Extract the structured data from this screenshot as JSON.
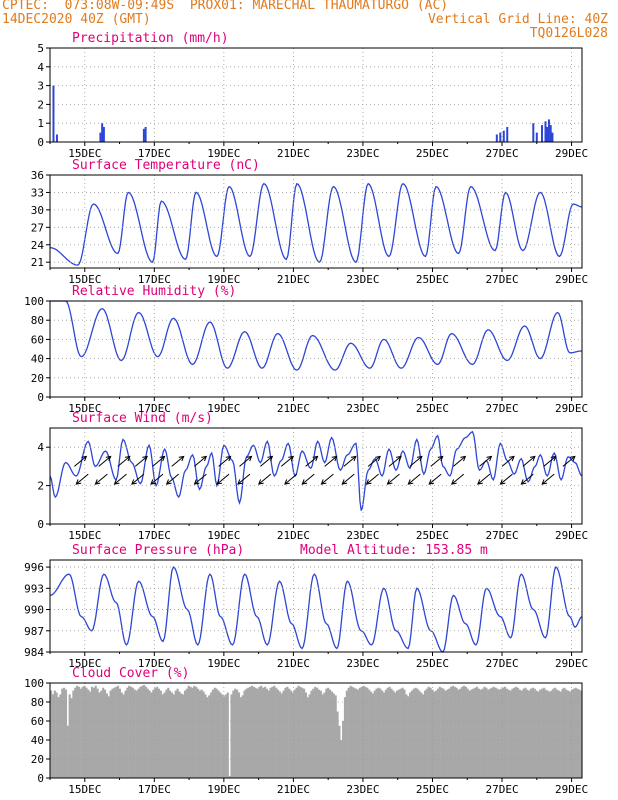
{
  "header": {
    "line1_left": "CPTEC:  073:08W-09:49S  PROX01: MARECHAL THAUMATURGO (AC)",
    "line2_left": "14DEC2020 40Z (GMT)",
    "line2_right": "Vertical Grid Line: 40Z",
    "line3_right": "TQ0126L028"
  },
  "x_tick_labels": [
    "15DEC",
    "17DEC",
    "19DEC",
    "21DEC",
    "23DEC",
    "25DEC",
    "27DEC",
    "29DEC"
  ],
  "colors": {
    "line": "#2e46d6",
    "title": "#e0007a",
    "header": "#e07b1f",
    "cloud": "#a8a8a8"
  },
  "chart_data": [
    {
      "type": "bar",
      "title": "Precipitation (mm/h)",
      "ylim": [
        0,
        5
      ],
      "yticks": [
        0,
        1,
        2,
        3,
        4,
        5
      ],
      "x": [
        0.1,
        0.2,
        1.45,
        1.5,
        1.55,
        2.7,
        2.75,
        12.85,
        12.95,
        13.05,
        13.15,
        13.9,
        14.0,
        14.15,
        14.25,
        14.3,
        14.35,
        14.4,
        14.45
      ],
      "values": [
        3.0,
        0.4,
        0.5,
        1.0,
        0.8,
        0.7,
        0.8,
        0.4,
        0.5,
        0.6,
        0.8,
        1.0,
        0.5,
        0.9,
        1.1,
        0.8,
        1.2,
        0.9,
        0.5
      ]
    },
    {
      "type": "line",
      "title": "Surface Temperature (nC)",
      "ylim": [
        20,
        36
      ],
      "yticks": [
        21,
        24,
        27,
        30,
        33,
        36
      ],
      "peaks": [
        [
          0.0,
          23.5
        ],
        [
          0.8,
          20.5
        ],
        [
          1.25,
          31
        ],
        [
          1.95,
          22.5
        ],
        [
          2.25,
          33
        ],
        [
          2.95,
          21
        ],
        [
          3.2,
          31.5
        ],
        [
          3.9,
          21.5
        ],
        [
          4.2,
          33
        ],
        [
          4.8,
          22
        ],
        [
          5.15,
          34
        ],
        [
          5.75,
          22
        ],
        [
          6.15,
          34.5
        ],
        [
          6.8,
          21.5
        ],
        [
          7.1,
          34.5
        ],
        [
          7.75,
          21
        ],
        [
          8.15,
          34
        ],
        [
          8.8,
          21
        ],
        [
          9.15,
          34.5
        ],
        [
          9.75,
          22
        ],
        [
          10.15,
          34.5
        ],
        [
          10.8,
          22
        ],
        [
          11.1,
          34
        ],
        [
          11.75,
          22.5
        ],
        [
          12.1,
          34
        ],
        [
          12.8,
          23
        ],
        [
          13.1,
          33
        ],
        [
          13.6,
          23
        ],
        [
          14.1,
          33
        ],
        [
          14.65,
          22
        ],
        [
          15.05,
          31
        ],
        [
          15.3,
          30.5
        ]
      ]
    },
    {
      "type": "line",
      "title": "Relative Humidity (%)",
      "ylim": [
        0,
        100
      ],
      "yticks": [
        0,
        20,
        40,
        60,
        80,
        100
      ],
      "peaks": [
        [
          0.0,
          100
        ],
        [
          0.45,
          100
        ],
        [
          0.9,
          42
        ],
        [
          1.5,
          92
        ],
        [
          2.05,
          38
        ],
        [
          2.55,
          88
        ],
        [
          3.1,
          42
        ],
        [
          3.55,
          82
        ],
        [
          4.1,
          34
        ],
        [
          4.6,
          78
        ],
        [
          5.1,
          30
        ],
        [
          5.6,
          68
        ],
        [
          6.1,
          30
        ],
        [
          6.55,
          66
        ],
        [
          7.1,
          28
        ],
        [
          7.55,
          64
        ],
        [
          8.2,
          28
        ],
        [
          8.65,
          56
        ],
        [
          9.2,
          30
        ],
        [
          9.6,
          60
        ],
        [
          10.1,
          30
        ],
        [
          10.6,
          62
        ],
        [
          11.15,
          34
        ],
        [
          11.55,
          66
        ],
        [
          12.15,
          34
        ],
        [
          12.6,
          70
        ],
        [
          13.15,
          38
        ],
        [
          13.65,
          74
        ],
        [
          14.1,
          40
        ],
        [
          14.6,
          88
        ],
        [
          14.95,
          46
        ],
        [
          15.3,
          48
        ]
      ]
    },
    {
      "type": "line",
      "title": "Surface Wind (m/s)",
      "ylim": [
        0,
        5
      ],
      "yticks": [
        0,
        2,
        4
      ],
      "peaks": [
        [
          0.0,
          2.5
        ],
        [
          0.15,
          1.4
        ],
        [
          0.45,
          3.2
        ],
        [
          0.75,
          2.5
        ],
        [
          1.1,
          4.3
        ],
        [
          1.3,
          3.0
        ],
        [
          1.6,
          3.8
        ],
        [
          1.9,
          2.3
        ],
        [
          2.1,
          4.4
        ],
        [
          2.35,
          3.2
        ],
        [
          2.6,
          2.1
        ],
        [
          2.85,
          4.1
        ],
        [
          3.05,
          2.0
        ],
        [
          3.3,
          3.9
        ],
        [
          3.5,
          2.4
        ],
        [
          3.7,
          1.4
        ],
        [
          3.9,
          2.8
        ],
        [
          4.1,
          3.6
        ],
        [
          4.3,
          1.8
        ],
        [
          4.5,
          3.0
        ],
        [
          4.65,
          3.7
        ],
        [
          4.8,
          2.0
        ],
        [
          5.0,
          4.1
        ],
        [
          5.25,
          3.3
        ],
        [
          5.45,
          1.1
        ],
        [
          5.65,
          3.5
        ],
        [
          5.85,
          4.1
        ],
        [
          6.05,
          3.2
        ],
        [
          6.25,
          4.3
        ],
        [
          6.45,
          2.5
        ],
        [
          6.65,
          3.3
        ],
        [
          6.85,
          4.2
        ],
        [
          7.05,
          2.5
        ],
        [
          7.25,
          3.8
        ],
        [
          7.5,
          2.9
        ],
        [
          7.7,
          4.3
        ],
        [
          7.9,
          3.2
        ],
        [
          8.1,
          4.5
        ],
        [
          8.35,
          2.8
        ],
        [
          8.55,
          3.6
        ],
        [
          8.8,
          4.2
        ],
        [
          8.95,
          0.7
        ],
        [
          9.15,
          2.8
        ],
        [
          9.35,
          3.4
        ],
        [
          9.55,
          2.5
        ],
        [
          9.75,
          3.9
        ],
        [
          9.95,
          2.8
        ],
        [
          10.15,
          3.8
        ],
        [
          10.35,
          2.9
        ],
        [
          10.55,
          4.4
        ],
        [
          10.75,
          2.6
        ],
        [
          10.95,
          3.9
        ],
        [
          11.15,
          4.6
        ],
        [
          11.3,
          3.0
        ],
        [
          11.5,
          2.5
        ],
        [
          11.7,
          3.9
        ],
        [
          11.95,
          4.5
        ],
        [
          12.15,
          4.8
        ],
        [
          12.35,
          2.8
        ],
        [
          12.55,
          3.3
        ],
        [
          12.75,
          2.3
        ],
        [
          12.95,
          4.2
        ],
        [
          13.15,
          3.3
        ],
        [
          13.35,
          2.6
        ],
        [
          13.55,
          3.4
        ],
        [
          13.75,
          2.2
        ],
        [
          13.95,
          3.0
        ],
        [
          14.1,
          3.6
        ],
        [
          14.3,
          2.5
        ],
        [
          14.5,
          3.7
        ],
        [
          14.7,
          2.3
        ],
        [
          14.9,
          3.5
        ],
        [
          15.1,
          3.2
        ],
        [
          15.3,
          2.5
        ]
      ],
      "arrows": [
        [
          0.7,
          1,
          1
        ],
        [
          1.1,
          -1,
          -1
        ],
        [
          1.4,
          1,
          1
        ],
        [
          1.65,
          -1,
          -1
        ],
        [
          1.95,
          1,
          1
        ],
        [
          2.2,
          -1,
          -1
        ],
        [
          2.45,
          1,
          1
        ],
        [
          2.7,
          -1,
          -1
        ],
        [
          2.95,
          1,
          1
        ],
        [
          3.25,
          -1,
          -1
        ],
        [
          3.5,
          1,
          1
        ],
        [
          3.7,
          -1,
          -1
        ],
        [
          4.15,
          1,
          1
        ],
        [
          4.5,
          -1,
          -1
        ],
        [
          4.85,
          1,
          1
        ],
        [
          5.15,
          -1,
          -1
        ],
        [
          5.45,
          1,
          1
        ],
        [
          5.75,
          -1,
          -1
        ],
        [
          6.05,
          1,
          1
        ],
        [
          6.35,
          -1,
          -1
        ],
        [
          6.65,
          1,
          1
        ],
        [
          7.1,
          -1,
          -1
        ],
        [
          7.35,
          1,
          1
        ],
        [
          7.6,
          -1,
          -1
        ],
        [
          7.9,
          1,
          1
        ],
        [
          8.15,
          -1,
          -1
        ],
        [
          8.45,
          1,
          1
        ],
        [
          8.75,
          -1,
          -1
        ],
        [
          9.15,
          1,
          1
        ],
        [
          9.45,
          -1,
          -1
        ],
        [
          9.75,
          1,
          1
        ],
        [
          10.05,
          -1,
          -1
        ],
        [
          10.35,
          1,
          1
        ],
        [
          10.65,
          -1,
          -1
        ],
        [
          10.95,
          1,
          1
        ],
        [
          11.25,
          -1,
          -1
        ],
        [
          11.6,
          1,
          1
        ],
        [
          11.9,
          -1,
          -1
        ],
        [
          12.35,
          1,
          1
        ],
        [
          12.65,
          -1,
          -1
        ],
        [
          13.0,
          1,
          1
        ],
        [
          13.3,
          -1,
          -1
        ],
        [
          13.6,
          1,
          1
        ],
        [
          13.9,
          -1,
          -1
        ],
        [
          14.2,
          1,
          1
        ],
        [
          14.5,
          -1,
          -1
        ],
        [
          14.75,
          1,
          1
        ]
      ]
    },
    {
      "type": "line",
      "title": "Surface Pressure (hPa)",
      "subtitle": "Model Altitude: 153.85 m",
      "ylim": [
        984,
        997
      ],
      "yticks": [
        984,
        987,
        990,
        993,
        996
      ],
      "peaks": [
        [
          0.0,
          992
        ],
        [
          0.55,
          995
        ],
        [
          0.9,
          989
        ],
        [
          1.2,
          987
        ],
        [
          1.55,
          995
        ],
        [
          1.9,
          991
        ],
        [
          2.2,
          985
        ],
        [
          2.55,
          994
        ],
        [
          2.95,
          989
        ],
        [
          3.25,
          985.5
        ],
        [
          3.55,
          996
        ],
        [
          3.95,
          990
        ],
        [
          4.25,
          985
        ],
        [
          4.6,
          995
        ],
        [
          4.9,
          989
        ],
        [
          5.25,
          985
        ],
        [
          5.6,
          995
        ],
        [
          5.95,
          989
        ],
        [
          6.25,
          985
        ],
        [
          6.6,
          994
        ],
        [
          6.95,
          988
        ],
        [
          7.25,
          984.5
        ],
        [
          7.6,
          995
        ],
        [
          7.95,
          988
        ],
        [
          8.25,
          984.5
        ],
        [
          8.55,
          994
        ],
        [
          8.95,
          987
        ],
        [
          9.25,
          985
        ],
        [
          9.6,
          993
        ],
        [
          9.95,
          987
        ],
        [
          10.3,
          984.5
        ],
        [
          10.55,
          993
        ],
        [
          10.95,
          987
        ],
        [
          11.3,
          984
        ],
        [
          11.6,
          992
        ],
        [
          11.95,
          988
        ],
        [
          12.25,
          985
        ],
        [
          12.55,
          993
        ],
        [
          12.95,
          989
        ],
        [
          13.25,
          986
        ],
        [
          13.55,
          995
        ],
        [
          13.9,
          990
        ],
        [
          14.25,
          986
        ],
        [
          14.55,
          996
        ],
        [
          14.95,
          989
        ],
        [
          15.1,
          987.5
        ],
        [
          15.3,
          989
        ]
      ]
    },
    {
      "type": "bar",
      "title": "Cloud Cover (%)",
      "ylim": [
        0,
        100
      ],
      "yticks": [
        0,
        20,
        40,
        60,
        80,
        100
      ],
      "values": [
        92,
        88,
        92,
        90,
        85,
        88,
        94,
        95,
        93,
        55,
        88,
        84,
        92,
        95,
        97,
        96,
        94,
        96,
        97,
        95,
        93,
        91,
        96,
        95,
        97,
        94,
        90,
        92,
        95,
        93,
        89,
        86,
        92,
        94,
        95,
        96,
        97,
        94,
        90,
        88,
        92,
        95,
        97,
        96,
        95,
        93,
        92,
        94,
        96,
        97,
        98,
        96,
        94,
        92,
        90,
        93,
        95,
        96,
        94,
        92,
        88,
        90,
        93,
        95,
        92,
        90,
        88,
        92,
        94,
        91,
        89,
        88,
        92,
        94,
        97,
        96,
        95,
        97,
        96,
        94,
        92,
        93,
        91,
        88,
        85,
        87,
        90,
        93,
        95,
        94,
        92,
        90,
        88,
        86,
        88,
        90,
        2,
        88,
        92,
        94,
        93,
        90,
        85,
        87,
        92,
        94,
        95,
        96,
        97,
        96,
        95,
        94,
        96,
        97,
        95,
        96,
        94,
        92,
        95,
        96,
        97,
        95,
        93,
        91,
        89,
        92,
        95,
        96,
        94,
        92,
        90,
        93,
        95,
        97,
        96,
        95,
        94,
        90,
        85,
        88,
        92,
        94,
        96,
        95,
        93,
        92,
        88,
        90,
        94,
        95,
        93,
        91,
        89,
        87,
        70,
        55,
        40,
        60,
        85,
        92,
        95,
        97,
        96,
        95,
        94,
        93,
        95,
        96,
        97,
        96,
        95,
        93,
        91,
        89,
        92,
        94,
        95,
        94,
        92,
        90,
        93,
        95,
        96,
        94,
        92,
        90,
        92,
        93,
        94,
        95,
        93,
        88,
        86,
        90,
        92,
        94,
        95,
        94,
        92,
        90,
        88,
        92,
        94,
        96,
        95,
        93,
        91,
        92,
        94,
        96,
        95,
        94,
        92,
        93,
        94,
        96,
        97,
        96,
        95,
        93,
        94,
        96,
        97,
        96,
        94,
        92,
        93,
        94,
        95,
        96,
        94,
        93,
        94,
        96,
        95,
        93,
        94,
        95,
        96,
        95,
        94,
        93,
        94,
        95,
        96,
        94,
        93,
        92,
        94,
        95,
        96,
        95,
        93,
        92,
        94,
        95,
        93,
        92,
        94,
        95,
        94,
        92,
        91,
        93,
        94,
        95,
        93,
        92,
        91,
        92,
        94,
        95,
        93,
        92,
        91,
        94,
        95,
        93,
        92,
        91,
        93,
        94,
        95,
        94,
        93,
        92
      ]
    }
  ]
}
